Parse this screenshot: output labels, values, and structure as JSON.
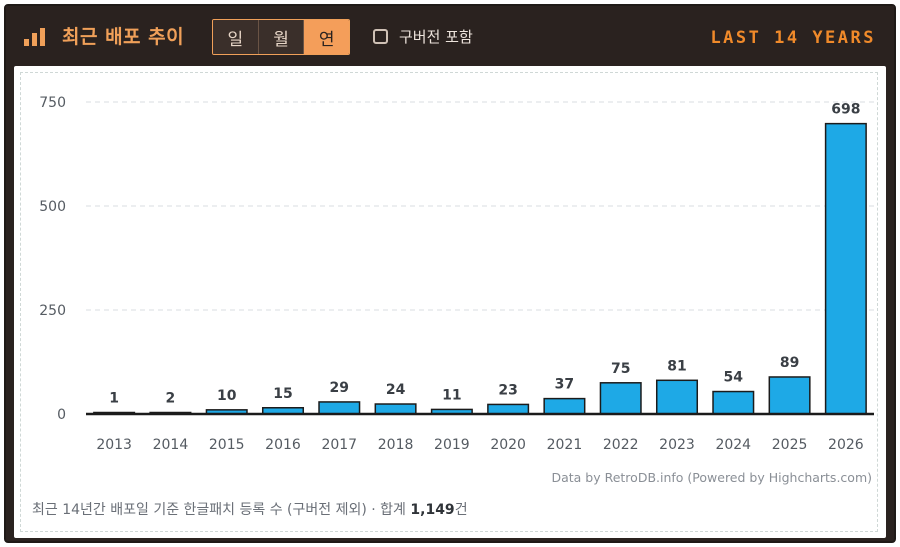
{
  "header": {
    "title": "최근 배포 추이",
    "icon": "bar-chart-icon",
    "tabs": [
      {
        "label": "일",
        "active": false
      },
      {
        "label": "월",
        "active": false
      },
      {
        "label": "연",
        "active": true
      }
    ],
    "include_old_versions_label": "구버전 포함",
    "include_old_versions_checked": false,
    "range_badge": "LAST 14 YEARS"
  },
  "colors": {
    "bar": "#1ea9e6",
    "accent": "#f0a059",
    "header_bg": "#2a221f"
  },
  "chart_data": {
    "type": "bar",
    "categories": [
      "2013",
      "2014",
      "2015",
      "2016",
      "2017",
      "2018",
      "2019",
      "2020",
      "2021",
      "2022",
      "2023",
      "2024",
      "2025",
      "2026"
    ],
    "values": [
      1,
      2,
      10,
      15,
      29,
      24,
      11,
      23,
      37,
      75,
      81,
      54,
      89,
      698
    ],
    "ylim": [
      0,
      750
    ],
    "yticks": [
      0,
      250,
      500,
      750
    ],
    "grid": true,
    "data_labels": true
  },
  "credit": "Data by RetroDB.info (Powered by Highcharts.com)",
  "footer": {
    "text": "최근 14년간 배포일 기준 한글패치 등록 수 (구버전 제외) · 합계 ",
    "total": "1,149",
    "unit": "건"
  }
}
